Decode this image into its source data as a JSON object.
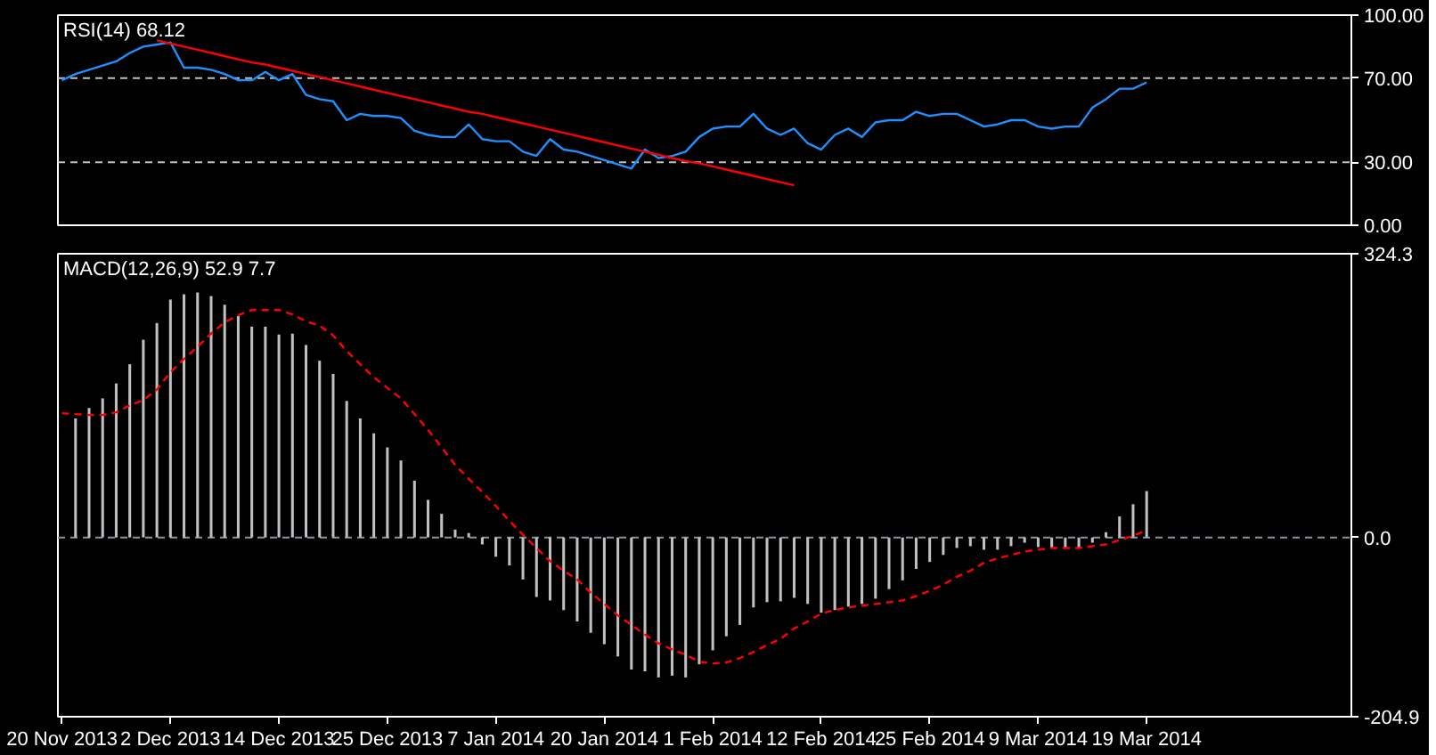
{
  "chart_data": [
    {
      "type": "line",
      "title": "RSI(14) 68.12",
      "categories": [
        null,
        null,
        null,
        null,
        null,
        null,
        null,
        null,
        null,
        null,
        null,
        null,
        null,
        null,
        null,
        null,
        null,
        null,
        null,
        null,
        null,
        null,
        null,
        null,
        null,
        null,
        null,
        null,
        null,
        null,
        null,
        null,
        null,
        null,
        null,
        null,
        null,
        null,
        null,
        null,
        null,
        null,
        null,
        null,
        null,
        null,
        null,
        null,
        null,
        null,
        null,
        null,
        null,
        null,
        null,
        null,
        null,
        null,
        null,
        null,
        null,
        null,
        null,
        null,
        null,
        null,
        null,
        null,
        null,
        null,
        null,
        null,
        null,
        null,
        null,
        null,
        null,
        null,
        null,
        null,
        null
      ],
      "series": [
        {
          "color": "#1e90ff",
          "values": [
            69,
            72,
            74,
            76,
            78,
            82,
            85,
            86,
            87,
            75,
            75,
            74,
            72,
            69,
            69,
            73,
            69,
            72,
            62,
            60,
            59,
            50,
            53,
            52,
            52,
            51,
            45,
            43,
            42,
            42,
            48,
            41,
            40,
            40,
            35,
            33,
            41,
            36,
            35,
            33,
            31,
            29,
            27,
            36,
            32,
            33,
            35,
            42,
            46,
            47,
            47,
            53,
            46,
            43,
            46,
            39,
            36,
            43,
            46,
            42,
            49,
            50,
            50,
            54,
            52,
            53,
            53,
            50,
            47,
            48,
            50,
            50,
            47,
            46,
            47,
            47,
            56,
            60,
            65,
            65,
            68
          ]
        },
        {
          "type": "line",
          "color": "#ff0000",
          "values": [
            null,
            null,
            null,
            null,
            null,
            null,
            null,
            88,
            86.5,
            85,
            83.5,
            82,
            80.5,
            79,
            77.5,
            76.5,
            75,
            73.5,
            72,
            70.5,
            69,
            67.5,
            66,
            64.5,
            63,
            61.5,
            60,
            58.5,
            57,
            55.5,
            54,
            53,
            51.5,
            50,
            48.5,
            47,
            45.5,
            44,
            42.5,
            41,
            39.5,
            38,
            36.5,
            35,
            33.5,
            32,
            30.5,
            29.5,
            28,
            26.5,
            25,
            23.5,
            22,
            20.5,
            19,
            null,
            null,
            null,
            null,
            null,
            null,
            null,
            null,
            null,
            null,
            null,
            null,
            null,
            null,
            null,
            null,
            null,
            null,
            null,
            null,
            null,
            null,
            null,
            null,
            null,
            null
          ]
        }
      ],
      "ylim": [
        0,
        100
      ],
      "yticks": [
        {
          "value": 100,
          "label": "100.00"
        },
        {
          "value": 70,
          "label": "70.00"
        },
        {
          "value": 30,
          "label": "30.00"
        },
        {
          "value": 0,
          "label": "0.00"
        }
      ],
      "ref_lines": [
        {
          "axis": "y",
          "value": 70,
          "color": "#c0c0c0",
          "line_style": "dashed"
        },
        {
          "axis": "y",
          "value": 30,
          "color": "#c0c0c0",
          "line_style": "dashed"
        }
      ],
      "tick_labels": "y"
    },
    {
      "type": "bar",
      "title": "MACD(12,26,9) 52.9 7.7",
      "categories": [
        "20 Nov 2013",
        null,
        null,
        null,
        null,
        null,
        null,
        null,
        "2 Dec 2013",
        null,
        null,
        null,
        null,
        null,
        null,
        null,
        "14 Dec 2013",
        null,
        null,
        null,
        null,
        null,
        null,
        null,
        "25 Dec 2013",
        null,
        null,
        null,
        null,
        null,
        null,
        null,
        "7 Jan 2014",
        null,
        null,
        null,
        null,
        null,
        null,
        null,
        "20 Jan 2014",
        null,
        null,
        null,
        null,
        null,
        null,
        null,
        "1 Feb 2014",
        null,
        null,
        null,
        null,
        null,
        null,
        null,
        "12 Feb 2014",
        null,
        null,
        null,
        null,
        null,
        null,
        null,
        "25 Feb 2014",
        null,
        null,
        null,
        null,
        null,
        null,
        null,
        "9 Mar 2014",
        null,
        null,
        null,
        null,
        null,
        null,
        null,
        "19 Mar 2014"
      ],
      "series": [
        {
          "type": "bar",
          "color": "#c0c0c0",
          "values": [
            null,
            136,
            148,
            159,
            176,
            198,
            226,
            245,
            272,
            278,
            280,
            276,
            266,
            253,
            241,
            241,
            232,
            233,
            220,
            202,
            187,
            156,
            136,
            119,
            103,
            88,
            65,
            43,
            27,
            9,
            5,
            -8,
            -22,
            -32,
            -48,
            -68,
            -72,
            -83,
            -96,
            -109,
            -122,
            -136,
            -151,
            -153,
            -160,
            -158,
            -160,
            -145,
            -129,
            -113,
            -100,
            -80,
            -74,
            -73,
            -69,
            -76,
            -86,
            -83,
            -79,
            -76,
            -70,
            -59,
            -49,
            -36,
            -28,
            -20,
            -12,
            -10,
            -14,
            -14,
            -10,
            -6,
            -11,
            -12,
            -12,
            -12,
            -6,
            6,
            24,
            38,
            53
          ]
        },
        {
          "type": "line",
          "color": "#ff0000",
          "line_style": "dashed",
          "values": [
            142,
            141,
            140,
            140,
            143,
            151,
            157,
            169,
            189,
            204,
            218,
            233,
            246,
            254,
            260,
            260,
            260,
            255,
            247,
            242,
            231,
            213,
            198,
            183,
            171,
            159,
            141,
            123,
            103,
            83,
            67,
            52,
            36,
            19,
            3,
            -12,
            -27,
            -38,
            -48,
            -63,
            -76,
            -89,
            -100,
            -111,
            -121,
            -128,
            -134,
            -142,
            -144,
            -143,
            -138,
            -131,
            -123,
            -116,
            -104,
            -96,
            -87,
            -83,
            -80,
            -78,
            -76,
            -74,
            -72,
            -67,
            -61,
            -54,
            -45,
            -38,
            -29,
            -24,
            -20,
            -16,
            -14,
            -12,
            -12,
            -12,
            -10,
            -8,
            -3,
            2,
            8
          ]
        }
      ],
      "ylim": [
        -204.9,
        324.3
      ],
      "yticks": [
        {
          "value": 324.3,
          "label": "324.3"
        },
        {
          "value": 0,
          "label": "0.0"
        },
        {
          "value": -204.9,
          "label": "-204.9"
        }
      ],
      "ref_lines": [
        {
          "axis": "y",
          "value": 0,
          "color": "#8894a4",
          "line_style": "dashed"
        }
      ]
    }
  ]
}
